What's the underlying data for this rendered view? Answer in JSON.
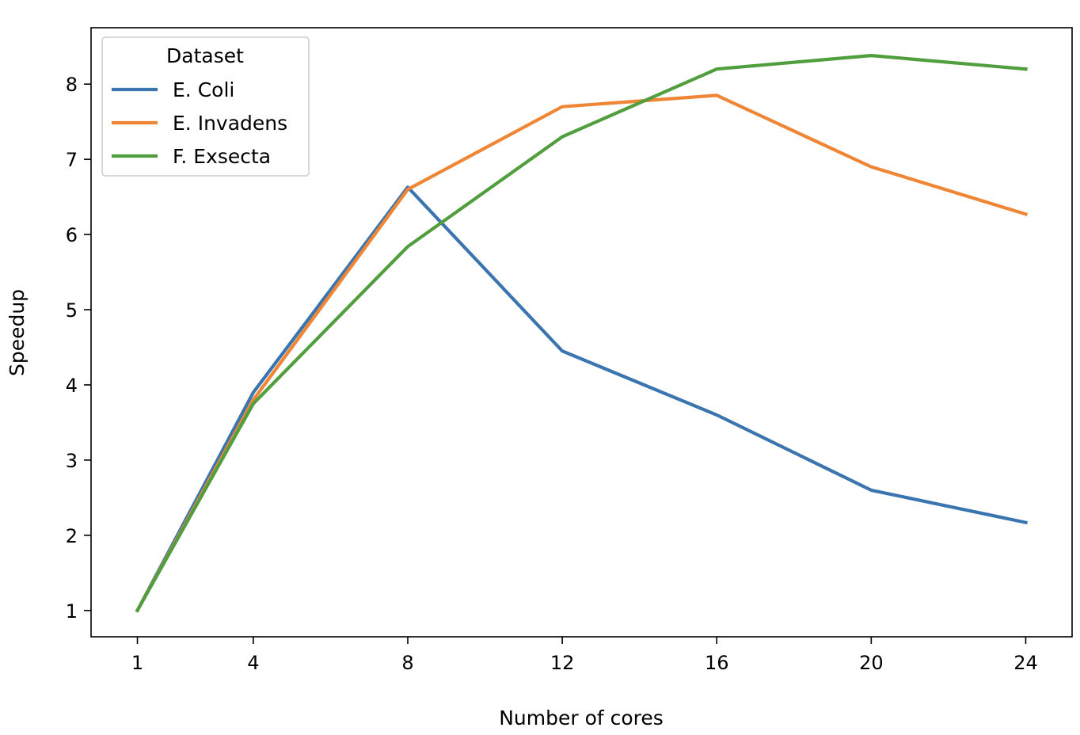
{
  "chart_data": {
    "type": "line",
    "x": [
      1,
      4,
      8,
      12,
      16,
      20,
      24
    ],
    "x_ticks": [
      1,
      4,
      8,
      12,
      16,
      20,
      24
    ],
    "y_ticks": [
      1,
      2,
      3,
      4,
      5,
      6,
      7,
      8
    ],
    "xlabel": "Number of cores",
    "ylabel": "Speedup",
    "xlim": [
      -0.2,
      25.2
    ],
    "ylim": [
      0.65,
      8.75
    ],
    "grid": false,
    "legend": {
      "title": "Dataset",
      "placement": "top-left"
    },
    "series": [
      {
        "name": "E. Coli",
        "color": "#3b75af",
        "values": [
          1.0,
          3.9,
          6.63,
          4.45,
          3.6,
          2.6,
          2.17
        ]
      },
      {
        "name": "E. Invadens",
        "color": "#ef8636",
        "values": [
          1.0,
          3.8,
          6.6,
          7.7,
          7.85,
          6.9,
          6.27
        ]
      },
      {
        "name": "F. Exsecta",
        "color": "#519e3e",
        "values": [
          1.0,
          3.75,
          5.84,
          7.3,
          8.2,
          8.38,
          8.2
        ]
      }
    ]
  }
}
